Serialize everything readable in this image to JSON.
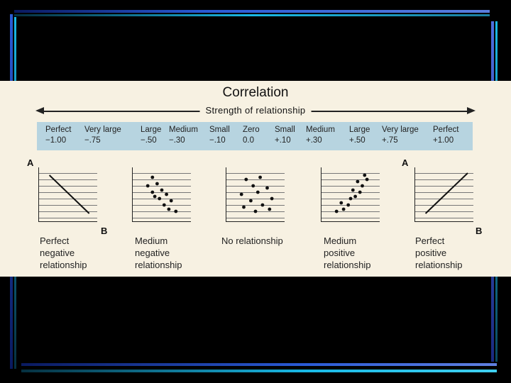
{
  "colors": {
    "background": "#000000",
    "panel": "#f7f1e2",
    "scale_band": "#b7d4e0",
    "stripe_blue": "#2a5bd6",
    "stripe_cyan": "#19b9e6"
  },
  "title": "Correlation",
  "strength_label": "Strength of relationship",
  "scale": [
    {
      "word": "Perfect",
      "value": "−1.00"
    },
    {
      "word": "Very large",
      "value": "−.75"
    },
    {
      "word": "Large",
      "value": "−.50"
    },
    {
      "word": "Medium",
      "value": "−.30"
    },
    {
      "word": "Small",
      "value": "−.10"
    },
    {
      "word": "Zero",
      "value": "0.0"
    },
    {
      "word": "Small",
      "value": "+.10"
    },
    {
      "word": "Medium",
      "value": "+.30"
    },
    {
      "word": "Large",
      "value": "+.50"
    },
    {
      "word": "Very large",
      "value": "+.75"
    },
    {
      "word": "Perfect",
      "value": "+1.00"
    }
  ],
  "axis_labels": {
    "a": "A",
    "b": "B"
  },
  "panels": [
    {
      "caption": "Perfect\nnegative\nrelationship",
      "kind": "line",
      "direction": "negative"
    },
    {
      "caption": "Medium\nnegative\nrelationship",
      "kind": "scatter",
      "points": [
        [
          0.3,
          0.9
        ],
        [
          0.2,
          0.7
        ],
        [
          0.4,
          0.75
        ],
        [
          0.5,
          0.6
        ],
        [
          0.3,
          0.55
        ],
        [
          0.6,
          0.5
        ],
        [
          0.45,
          0.4
        ],
        [
          0.7,
          0.35
        ],
        [
          0.55,
          0.25
        ],
        [
          0.8,
          0.1
        ],
        [
          0.65,
          0.15
        ],
        [
          0.35,
          0.45
        ]
      ]
    },
    {
      "caption": "No relationship",
      "kind": "scatter",
      "points": [
        [
          0.3,
          0.85
        ],
        [
          0.6,
          0.9
        ],
        [
          0.45,
          0.7
        ],
        [
          0.75,
          0.65
        ],
        [
          0.2,
          0.5
        ],
        [
          0.55,
          0.55
        ],
        [
          0.85,
          0.4
        ],
        [
          0.4,
          0.35
        ],
        [
          0.65,
          0.25
        ],
        [
          0.25,
          0.2
        ],
        [
          0.5,
          0.1
        ],
        [
          0.8,
          0.15
        ]
      ]
    },
    {
      "caption": "Medium\npositive\nrelationship",
      "kind": "scatter",
      "points": [
        [
          0.2,
          0.1
        ],
        [
          0.35,
          0.15
        ],
        [
          0.3,
          0.3
        ],
        [
          0.45,
          0.25
        ],
        [
          0.5,
          0.4
        ],
        [
          0.6,
          0.45
        ],
        [
          0.55,
          0.6
        ],
        [
          0.7,
          0.55
        ],
        [
          0.75,
          0.7
        ],
        [
          0.65,
          0.8
        ],
        [
          0.85,
          0.85
        ],
        [
          0.8,
          0.95
        ]
      ]
    },
    {
      "caption": "Perfect\npositive\nrelationship",
      "kind": "line",
      "direction": "positive"
    }
  ]
}
